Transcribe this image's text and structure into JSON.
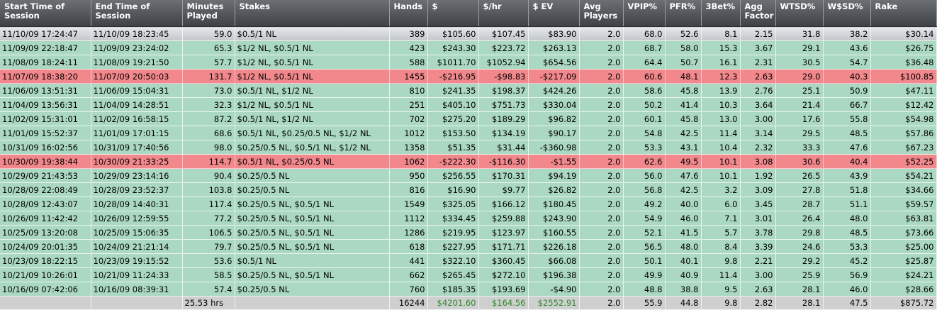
{
  "headers": {
    "start": "Start Time of Session",
    "end": "End Time of Session",
    "minutes": "Minutes Played",
    "stakes": "Stakes",
    "hands": "Hands",
    "dollars": "$",
    "per_hr": "$/hr",
    "ev": "$ EV",
    "avg_players": "Avg Players",
    "vpip": "VPIP%",
    "pfr": "PFR%",
    "threebet": "3Bet%",
    "agg": "Agg Factor",
    "wtsd": "WTSD%",
    "wsd": "W$SD%",
    "rake": "Rake"
  },
  "rows": [
    {
      "start": "11/10/09 17:24:47",
      "end": "11/10/09 18:23:45",
      "minutes": "59.0",
      "stakes": "$0.5/1 NL",
      "hands": "389",
      "dollars": "$105.60",
      "per_hr": "$107.45",
      "ev": "$83.90",
      "avg_players": "2.0",
      "vpip": "68.0",
      "pfr": "52.6",
      "threebet": "8.1",
      "agg": "2.15",
      "wtsd": "31.8",
      "wsd": "38.2",
      "rake": "$30.14",
      "status": "selected"
    },
    {
      "start": "11/09/09 22:18:47",
      "end": "11/09/09 23:24:02",
      "minutes": "65.3",
      "stakes": "$1/2 NL, $0.5/1 NL",
      "hands": "423",
      "dollars": "$243.30",
      "per_hr": "$223.72",
      "ev": "$263.13",
      "avg_players": "2.0",
      "vpip": "68.7",
      "pfr": "58.0",
      "threebet": "15.3",
      "agg": "3.67",
      "wtsd": "29.1",
      "wsd": "43.6",
      "rake": "$26.75",
      "status": "win"
    },
    {
      "start": "11/08/09 18:24:11",
      "end": "11/08/09 19:21:50",
      "minutes": "57.7",
      "stakes": "$1/2 NL, $0.5/1 NL",
      "hands": "588",
      "dollars": "$1011.70",
      "per_hr": "$1052.94",
      "ev": "$654.56",
      "avg_players": "2.0",
      "vpip": "64.4",
      "pfr": "50.7",
      "threebet": "16.1",
      "agg": "2.31",
      "wtsd": "30.5",
      "wsd": "54.7",
      "rake": "$36.48",
      "status": "win"
    },
    {
      "start": "11/07/09 18:38:20",
      "end": "11/07/09 20:50:03",
      "minutes": "131.7",
      "stakes": "$1/2 NL, $0.5/1 NL",
      "hands": "1455",
      "dollars": "-$216.95",
      "per_hr": "-$98.83",
      "ev": "-$217.09",
      "avg_players": "2.0",
      "vpip": "60.6",
      "pfr": "48.1",
      "threebet": "12.3",
      "agg": "2.63",
      "wtsd": "29.0",
      "wsd": "40.3",
      "rake": "$100.85",
      "status": "loss"
    },
    {
      "start": "11/06/09 13:51:31",
      "end": "11/06/09 15:04:31",
      "minutes": "73.0",
      "stakes": "$0.5/1 NL, $1/2 NL",
      "hands": "810",
      "dollars": "$241.35",
      "per_hr": "$198.37",
      "ev": "$424.26",
      "avg_players": "2.0",
      "vpip": "58.6",
      "pfr": "45.8",
      "threebet": "13.9",
      "agg": "2.76",
      "wtsd": "25.1",
      "wsd": "50.9",
      "rake": "$47.11",
      "status": "win"
    },
    {
      "start": "11/04/09 13:56:31",
      "end": "11/04/09 14:28:51",
      "minutes": "32.3",
      "stakes": "$1/2 NL, $0.5/1 NL",
      "hands": "251",
      "dollars": "$405.10",
      "per_hr": "$751.73",
      "ev": "$330.04",
      "avg_players": "2.0",
      "vpip": "50.2",
      "pfr": "41.4",
      "threebet": "10.3",
      "agg": "3.64",
      "wtsd": "21.4",
      "wsd": "66.7",
      "rake": "$12.42",
      "status": "win"
    },
    {
      "start": "11/02/09 15:31:01",
      "end": "11/02/09 16:58:15",
      "minutes": "87.2",
      "stakes": "$0.5/1 NL, $1/2 NL",
      "hands": "702",
      "dollars": "$275.20",
      "per_hr": "$189.29",
      "ev": "$96.82",
      "avg_players": "2.0",
      "vpip": "60.1",
      "pfr": "45.8",
      "threebet": "13.0",
      "agg": "3.00",
      "wtsd": "17.6",
      "wsd": "55.8",
      "rake": "$54.98",
      "status": "win"
    },
    {
      "start": "11/01/09 15:52:37",
      "end": "11/01/09 17:01:15",
      "minutes": "68.6",
      "stakes": "$0.5/1 NL, $0.25/0.5 NL, $1/2 NL",
      "hands": "1012",
      "dollars": "$153.50",
      "per_hr": "$134.19",
      "ev": "$90.17",
      "avg_players": "2.0",
      "vpip": "54.8",
      "pfr": "42.5",
      "threebet": "11.4",
      "agg": "3.14",
      "wtsd": "29.5",
      "wsd": "48.5",
      "rake": "$57.86",
      "status": "win"
    },
    {
      "start": "10/31/09 16:02:56",
      "end": "10/31/09 17:40:56",
      "minutes": "98.0",
      "stakes": "$0.25/0.5 NL, $0.5/1 NL, $1/2 NL",
      "hands": "1358",
      "dollars": "$51.35",
      "per_hr": "$31.44",
      "ev": "-$360.98",
      "avg_players": "2.0",
      "vpip": "53.3",
      "pfr": "43.1",
      "threebet": "10.4",
      "agg": "2.32",
      "wtsd": "33.3",
      "wsd": "47.6",
      "rake": "$67.23",
      "status": "win"
    },
    {
      "start": "10/30/09 19:38:44",
      "end": "10/30/09 21:33:25",
      "minutes": "114.7",
      "stakes": "$0.5/1 NL, $0.25/0.5 NL",
      "hands": "1062",
      "dollars": "-$222.30",
      "per_hr": "-$116.30",
      "ev": "-$1.55",
      "avg_players": "2.0",
      "vpip": "62.6",
      "pfr": "49.5",
      "threebet": "10.1",
      "agg": "3.08",
      "wtsd": "30.6",
      "wsd": "40.4",
      "rake": "$52.25",
      "status": "loss"
    },
    {
      "start": "10/29/09 21:43:53",
      "end": "10/29/09 23:14:16",
      "minutes": "90.4",
      "stakes": "$0.25/0.5 NL",
      "hands": "950",
      "dollars": "$256.55",
      "per_hr": "$170.31",
      "ev": "$94.19",
      "avg_players": "2.0",
      "vpip": "56.0",
      "pfr": "47.6",
      "threebet": "10.1",
      "agg": "1.92",
      "wtsd": "26.5",
      "wsd": "43.9",
      "rake": "$54.21",
      "status": "win"
    },
    {
      "start": "10/28/09 22:08:49",
      "end": "10/28/09 23:52:37",
      "minutes": "103.8",
      "stakes": "$0.25/0.5 NL",
      "hands": "816",
      "dollars": "$16.90",
      "per_hr": "$9.77",
      "ev": "$26.82",
      "avg_players": "2.0",
      "vpip": "56.8",
      "pfr": "42.5",
      "threebet": "3.2",
      "agg": "3.09",
      "wtsd": "27.8",
      "wsd": "51.8",
      "rake": "$34.66",
      "status": "win"
    },
    {
      "start": "10/28/09 12:43:07",
      "end": "10/28/09 14:40:31",
      "minutes": "117.4",
      "stakes": "$0.25/0.5 NL, $0.5/1 NL",
      "hands": "1549",
      "dollars": "$325.05",
      "per_hr": "$166.12",
      "ev": "$180.45",
      "avg_players": "2.0",
      "vpip": "49.2",
      "pfr": "40.0",
      "threebet": "6.0",
      "agg": "3.45",
      "wtsd": "28.7",
      "wsd": "51.1",
      "rake": "$59.57",
      "status": "win"
    },
    {
      "start": "10/26/09 11:42:42",
      "end": "10/26/09 12:59:55",
      "minutes": "77.2",
      "stakes": "$0.25/0.5 NL, $0.5/1 NL",
      "hands": "1112",
      "dollars": "$334.45",
      "per_hr": "$259.88",
      "ev": "$243.90",
      "avg_players": "2.0",
      "vpip": "54.9",
      "pfr": "46.0",
      "threebet": "7.1",
      "agg": "3.01",
      "wtsd": "26.4",
      "wsd": "48.0",
      "rake": "$63.81",
      "status": "win"
    },
    {
      "start": "10/25/09 13:20:08",
      "end": "10/25/09 15:06:35",
      "minutes": "106.5",
      "stakes": "$0.25/0.5 NL, $0.5/1 NL",
      "hands": "1286",
      "dollars": "$219.95",
      "per_hr": "$123.97",
      "ev": "$160.55",
      "avg_players": "2.0",
      "vpip": "52.1",
      "pfr": "41.5",
      "threebet": "5.7",
      "agg": "3.78",
      "wtsd": "29.8",
      "wsd": "48.5",
      "rake": "$73.66",
      "status": "win"
    },
    {
      "start": "10/24/09 20:01:35",
      "end": "10/24/09 21:21:14",
      "minutes": "79.7",
      "stakes": "$0.25/0.5 NL, $0.5/1 NL",
      "hands": "618",
      "dollars": "$227.95",
      "per_hr": "$171.71",
      "ev": "$226.18",
      "avg_players": "2.0",
      "vpip": "56.5",
      "pfr": "48.0",
      "threebet": "8.4",
      "agg": "3.39",
      "wtsd": "24.6",
      "wsd": "53.3",
      "rake": "$25.00",
      "status": "win"
    },
    {
      "start": "10/23/09 18:22:15",
      "end": "10/23/09 19:15:52",
      "minutes": "53.6",
      "stakes": "$0.5/1 NL",
      "hands": "441",
      "dollars": "$322.10",
      "per_hr": "$360.45",
      "ev": "$66.08",
      "avg_players": "2.0",
      "vpip": "50.1",
      "pfr": "40.1",
      "threebet": "9.8",
      "agg": "2.21",
      "wtsd": "29.2",
      "wsd": "45.2",
      "rake": "$25.87",
      "status": "win"
    },
    {
      "start": "10/21/09 10:26:01",
      "end": "10/21/09 11:24:33",
      "minutes": "58.5",
      "stakes": "$0.25/0.5 NL, $0.5/1 NL",
      "hands": "662",
      "dollars": "$265.45",
      "per_hr": "$272.10",
      "ev": "$196.38",
      "avg_players": "2.0",
      "vpip": "49.9",
      "pfr": "40.9",
      "threebet": "11.4",
      "agg": "3.00",
      "wtsd": "25.9",
      "wsd": "56.9",
      "rake": "$24.21",
      "status": "win"
    },
    {
      "start": "10/16/09 07:42:06",
      "end": "10/16/09 08:39:31",
      "minutes": "57.4",
      "stakes": "$0.25/0.5 NL",
      "hands": "760",
      "dollars": "$185.35",
      "per_hr": "$193.69",
      "ev": "-$4.90",
      "avg_players": "2.0",
      "vpip": "48.8",
      "pfr": "38.8",
      "threebet": "9.5",
      "agg": "2.63",
      "wtsd": "28.1",
      "wsd": "46.0",
      "rake": "$28.66",
      "status": "win"
    }
  ],
  "summary": {
    "start": "",
    "end": "",
    "minutes": "25.53 hrs",
    "stakes": "",
    "hands": "16244",
    "dollars": "$4201.60",
    "per_hr": "$164.56",
    "ev": "$2552.91",
    "avg_players": "2.0",
    "vpip": "55.9",
    "pfr": "44.8",
    "threebet": "9.8",
    "agg": "2.82",
    "wtsd": "28.1",
    "wsd": "47.5",
    "rake": "$875.72"
  },
  "colors": {
    "win_row": "#aad8c2",
    "loss_row": "#f2888c",
    "selected_row": "#d4d7da",
    "header": "#4a4e52",
    "summary_positive_text": "#2a8a2a"
  }
}
